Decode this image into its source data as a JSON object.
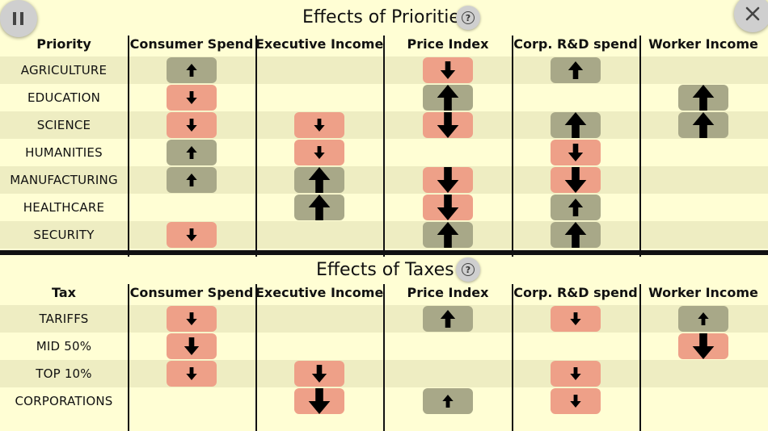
{
  "controls": {
    "pause_icon": "pause-icon",
    "close_icon": "close-icon",
    "help_glyph": "?"
  },
  "colors": {
    "positive_shade": "#a8a888",
    "negative_shade": "#eea088",
    "background": "#fffed4",
    "row_band": "#eeedc2"
  },
  "priorities": {
    "title": "Effects of Prioritie",
    "header_first": "Priority",
    "columns": [
      "Consumer Spend",
      "Executive Income",
      "Price Index",
      "Corp. R&D spend",
      "Worker Income"
    ],
    "rows": [
      {
        "label": "AGRICULTURE",
        "effects": [
          "up-1",
          "",
          "down-2",
          "up-2",
          ""
        ]
      },
      {
        "label": "EDUCATION",
        "effects": [
          "down-1",
          "",
          "up-3",
          "",
          "up-3"
        ]
      },
      {
        "label": "SCIENCE",
        "effects": [
          "down-1",
          "down-1",
          "down-3",
          "up-3",
          "up-3"
        ]
      },
      {
        "label": "HUMANITIES",
        "effects": [
          "up-1",
          "down-1",
          "",
          "down-2",
          ""
        ]
      },
      {
        "label": "MANUFACTURING",
        "effects": [
          "up-1",
          "up-3",
          "down-3",
          "down-3",
          ""
        ]
      },
      {
        "label": "HEALTHCARE",
        "effects": [
          "",
          "up-3",
          "down-3",
          "up-2",
          ""
        ]
      },
      {
        "label": "SECURITY",
        "effects": [
          "down-1",
          "",
          "up-3",
          "up-3",
          ""
        ]
      }
    ]
  },
  "taxes": {
    "title": "Effects of Taxes",
    "header_first": "Tax",
    "columns": [
      "Consumer Spend",
      "Executive Income",
      "Price Index",
      "Corp. R&D spend",
      "Worker Income"
    ],
    "rows": [
      {
        "label": "TARIFFS",
        "effects": [
          "down-1",
          "",
          "up-2",
          "down-1",
          "up-1"
        ]
      },
      {
        "label": "MID 50%",
        "effects": [
          "down-2",
          "",
          "",
          "",
          "down-3"
        ]
      },
      {
        "label": "TOP 10%",
        "effects": [
          "down-1",
          "down-2",
          "",
          "down-1",
          ""
        ]
      },
      {
        "label": "CORPORATIONS",
        "effects": [
          "",
          "down-3",
          "up-1",
          "down-1",
          ""
        ]
      }
    ]
  }
}
